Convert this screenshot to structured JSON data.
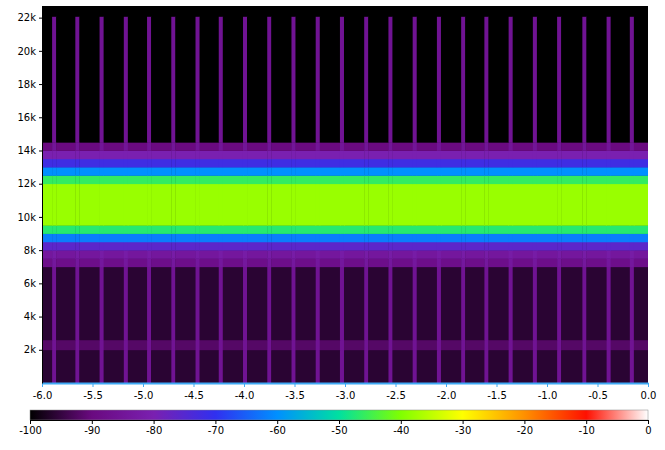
{
  "chart_data": {
    "type": "heatmap",
    "xlim": [
      -6,
      0
    ],
    "xticks": [
      {
        "value": -6,
        "label": "-6.0"
      },
      -5.5,
      {
        "value": -5,
        "label": "-5.0"
      },
      -4.5,
      {
        "value": -4,
        "label": "-4.0"
      },
      -3.5,
      {
        "value": -3,
        "label": "-3.0"
      },
      -2.5,
      {
        "value": -2,
        "label": "-2.0"
      },
      -1.5,
      {
        "value": -1,
        "label": "-1.0"
      },
      -0.5,
      {
        "value": 0,
        "label": "0.0"
      }
    ],
    "ylim": [
      0,
      22700
    ],
    "yticks": [
      {
        "value": 2000,
        "label": "2k"
      },
      {
        "value": 4000,
        "label": "4k"
      },
      {
        "value": 6000,
        "label": "6k"
      },
      {
        "value": 8000,
        "label": "8k"
      },
      {
        "value": 10000,
        "label": "10k"
      },
      {
        "value": 12000,
        "label": "12k"
      },
      {
        "value": 14000,
        "label": "14k"
      },
      {
        "value": 16000,
        "label": "16k"
      },
      {
        "value": 18000,
        "label": "18k"
      },
      {
        "value": 20000,
        "label": "20k"
      },
      {
        "value": 22000,
        "label": "22k"
      }
    ],
    "cells": {
      "x_edges": [
        -6,
        -5.9,
        -5.86,
        -5.67,
        -5.63,
        -5.43,
        -5.39,
        -5.19,
        -5.15,
        -4.96,
        -4.92,
        -4.72,
        -4.68,
        -4.48,
        -4.44,
        -4.25,
        -4.21,
        -4.01,
        -3.97,
        -3.77,
        -3.73,
        -3.53,
        -3.49,
        -3.29,
        -3.25,
        -3.05,
        -3.01,
        -2.81,
        -2.77,
        -2.57,
        -2.53,
        -2.33,
        -2.29,
        -2.09,
        -2.05,
        -1.85,
        -1.81,
        -1.62,
        -1.58,
        -1.38,
        -1.34,
        -1.14,
        -1.1,
        -0.9,
        -0.86,
        -0.65,
        -0.61,
        -0.41,
        -0.37,
        -0.18,
        -0.14,
        0
      ],
      "y_edges": [
        0,
        2000,
        2600,
        7000,
        7500,
        8000,
        8500,
        9000,
        9500,
        12000,
        12500,
        13000,
        13500,
        14000,
        14500,
        22050
      ],
      "values": [
        [
          -96,
          -86,
          -96,
          -86,
          -96,
          -86,
          -96,
          -86,
          -96,
          -86,
          -96,
          -86,
          -96,
          -86,
          -96,
          -86,
          -96,
          -86,
          -96,
          -86,
          -96,
          -86,
          -96,
          -86,
          -96,
          -86,
          -96,
          -86,
          -96,
          -86,
          -96,
          -86,
          -96,
          -86,
          -96,
          -86,
          -96,
          -86,
          -96,
          -86,
          -96,
          -86,
          -96,
          -86,
          -96,
          -86,
          -96,
          -86,
          -96,
          -86,
          -96
        ],
        [
          -92,
          -86,
          -92,
          -86,
          -92,
          -86,
          -92,
          -86,
          -92,
          -86,
          -92,
          -86,
          -92,
          -86,
          -92,
          -86,
          -92,
          -86,
          -92,
          -86,
          -92,
          -86,
          -92,
          -86,
          -92,
          -86,
          -92,
          -86,
          -92,
          -86,
          -92,
          -86,
          -92,
          -86,
          -92,
          -86,
          -92,
          -86,
          -92,
          -86,
          -92,
          -86,
          -92,
          -86,
          -92,
          -86,
          -92,
          -86,
          -92,
          -86,
          -92
        ],
        [
          -96,
          -86,
          -96,
          -86,
          -96,
          -86,
          -96,
          -86,
          -96,
          -86,
          -96,
          -86,
          -96,
          -86,
          -96,
          -86,
          -96,
          -86,
          -96,
          -86,
          -96,
          -86,
          -96,
          -86,
          -96,
          -86,
          -96,
          -86,
          -96,
          -86,
          -96,
          -86,
          -96,
          -86,
          -96,
          -86,
          -96,
          -86,
          -96,
          -86,
          -96,
          -86,
          -96,
          -86,
          -96,
          -86,
          -96,
          -86,
          -96,
          -86,
          -96
        ],
        [
          -88,
          -84,
          -88,
          -84,
          -88,
          -84,
          -88,
          -84,
          -88,
          -84,
          -88,
          -84,
          -88,
          -84,
          -88,
          -84,
          -88,
          -84,
          -88,
          -84,
          -88,
          -84,
          -88,
          -84,
          -88,
          -84,
          -88,
          -84,
          -88,
          -84,
          -88,
          -84,
          -88,
          -84,
          -88,
          -84,
          -88,
          -84,
          -88,
          -84,
          -88,
          -84,
          -88,
          -84,
          -88,
          -84,
          -88,
          -84,
          -88,
          -84,
          -88
        ],
        [
          -84,
          -82,
          -84,
          -82,
          -84,
          -82,
          -84,
          -82,
          -84,
          -82,
          -84,
          -82,
          -84,
          -82,
          -84,
          -82,
          -84,
          -82,
          -84,
          -82,
          -84,
          -82,
          -84,
          -82,
          -84,
          -82,
          -84,
          -82,
          -84,
          -82,
          -84,
          -82,
          -84,
          -82,
          -84,
          -82,
          -84,
          -82,
          -84,
          -82,
          -84,
          -82,
          -84,
          -82,
          -84,
          -82,
          -84,
          -82,
          -84,
          -82,
          -84
        ],
        [
          -76,
          -76,
          -76,
          -76,
          -76,
          -76,
          -76,
          -76,
          -76,
          -76,
          -76,
          -76,
          -76,
          -76,
          -76,
          -76,
          -76,
          -76,
          -76,
          -76,
          -76,
          -76,
          -76,
          -76,
          -76,
          -76,
          -76,
          -76,
          -76,
          -76,
          -76,
          -76,
          -76,
          -76,
          -76,
          -76,
          -76,
          -76,
          -76,
          -76,
          -76,
          -76,
          -76,
          -76,
          -76,
          -76,
          -76,
          -76,
          -76,
          -76,
          -76
        ],
        [
          -62,
          -62,
          -62,
          -62,
          -62,
          -62,
          -62,
          -62,
          -62,
          -62,
          -62,
          -62,
          -62,
          -62,
          -62,
          -62,
          -62,
          -62,
          -62,
          -62,
          -62,
          -62,
          -62,
          -62,
          -62,
          -62,
          -62,
          -62,
          -62,
          -62,
          -62,
          -62,
          -62,
          -62,
          -62,
          -62,
          -62,
          -62,
          -62,
          -62,
          -62,
          -62,
          -62,
          -62,
          -62,
          -62,
          -62,
          -62,
          -62,
          -62,
          -62
        ],
        [
          -47,
          -47,
          -47,
          -47,
          -47,
          -47,
          -47,
          -47,
          -47,
          -47,
          -47,
          -47,
          -47,
          -47,
          -47,
          -47,
          -47,
          -47,
          -47,
          -47,
          -47,
          -47,
          -47,
          -47,
          -47,
          -47,
          -47,
          -47,
          -47,
          -47,
          -47,
          -47,
          -47,
          -47,
          -47,
          -47,
          -47,
          -47,
          -47,
          -47,
          -47,
          -47,
          -47,
          -47,
          -47,
          -47,
          -47,
          -47,
          -47,
          -47,
          -47
        ],
        [
          -38,
          -38,
          -38,
          -38,
          -38,
          -38,
          -38,
          -38,
          -38,
          -38,
          -38,
          -38,
          -38,
          -38,
          -38,
          -38,
          -38,
          -38,
          -38,
          -38,
          -38,
          -38,
          -38,
          -38,
          -38,
          -38,
          -38,
          -38,
          -38,
          -38,
          -38,
          -38,
          -38,
          -38,
          -38,
          -38,
          -38,
          -38,
          -38,
          -38,
          -38,
          -38,
          -38,
          -38,
          -38,
          -38,
          -38,
          -38,
          -38,
          -38,
          -38
        ],
        [
          -46,
          -46,
          -46,
          -46,
          -46,
          -46,
          -46,
          -46,
          -46,
          -46,
          -46,
          -46,
          -46,
          -46,
          -46,
          -46,
          -46,
          -46,
          -46,
          -46,
          -46,
          -46,
          -46,
          -46,
          -46,
          -46,
          -46,
          -46,
          -46,
          -46,
          -46,
          -46,
          -46,
          -46,
          -46,
          -46,
          -46,
          -46,
          -46,
          -46,
          -46,
          -46,
          -46,
          -46,
          -46,
          -46,
          -46,
          -46,
          -46,
          -46,
          -46
        ],
        [
          -60,
          -60,
          -60,
          -60,
          -60,
          -60,
          -60,
          -60,
          -60,
          -60,
          -60,
          -60,
          -60,
          -60,
          -60,
          -60,
          -60,
          -60,
          -60,
          -60,
          -60,
          -60,
          -60,
          -60,
          -60,
          -60,
          -60,
          -60,
          -60,
          -60,
          -60,
          -60,
          -60,
          -60,
          -60,
          -60,
          -60,
          -60,
          -60,
          -60,
          -60,
          -60,
          -60,
          -60,
          -60,
          -60,
          -60,
          -60,
          -60,
          -60,
          -60
        ],
        [
          -72,
          -72,
          -72,
          -72,
          -72,
          -72,
          -72,
          -72,
          -72,
          -72,
          -72,
          -72,
          -72,
          -72,
          -72,
          -72,
          -72,
          -72,
          -72,
          -72,
          -72,
          -72,
          -72,
          -72,
          -72,
          -72,
          -72,
          -72,
          -72,
          -72,
          -72,
          -72,
          -72,
          -72,
          -72,
          -72,
          -72,
          -72,
          -72,
          -72,
          -72,
          -72,
          -72,
          -72,
          -72,
          -72,
          -72,
          -72,
          -72,
          -72,
          -72
        ],
        [
          -80,
          -80,
          -80,
          -80,
          -80,
          -80,
          -80,
          -80,
          -80,
          -80,
          -80,
          -80,
          -80,
          -80,
          -80,
          -80,
          -80,
          -80,
          -80,
          -80,
          -80,
          -80,
          -80,
          -80,
          -80,
          -80,
          -80,
          -80,
          -80,
          -80,
          -80,
          -80,
          -80,
          -80,
          -80,
          -80,
          -80,
          -80,
          -80,
          -80,
          -80,
          -80,
          -80,
          -80,
          -80,
          -80,
          -80,
          -80,
          -80,
          -80,
          -80
        ],
        [
          -90,
          -85,
          -90,
          -85,
          -90,
          -85,
          -90,
          -85,
          -90,
          -85,
          -90,
          -85,
          -90,
          -85,
          -90,
          -85,
          -90,
          -85,
          -90,
          -85,
          -90,
          -85,
          -90,
          -85,
          -90,
          -85,
          -90,
          -85,
          -90,
          -85,
          -90,
          -85,
          -90,
          -85,
          -90,
          -85,
          -90,
          -85,
          -90,
          -85,
          -90,
          -85,
          -90,
          -85,
          -90,
          -85,
          -90,
          -85,
          -90,
          -85,
          -90
        ],
        [
          -100,
          -86,
          -100,
          -86,
          -100,
          -86,
          -100,
          -86,
          -100,
          -86,
          -100,
          -86,
          -100,
          -86,
          -100,
          -86,
          -100,
          -86,
          -100,
          -86,
          -100,
          -86,
          -100,
          -86,
          -100,
          -86,
          -100,
          -86,
          -100,
          -86,
          -100,
          -86,
          -100,
          -86,
          -100,
          -86,
          -100,
          -86,
          -100,
          -86,
          -100,
          -86,
          -100,
          -86,
          -100,
          -86,
          -100,
          -86,
          -100,
          -86,
          -100
        ]
      ]
    },
    "colorbar": {
      "range": [
        -100,
        0
      ],
      "ticks": [
        -100,
        -90,
        -80,
        -70,
        -60,
        -50,
        -40,
        -30,
        -20,
        -10,
        0
      ]
    }
  }
}
